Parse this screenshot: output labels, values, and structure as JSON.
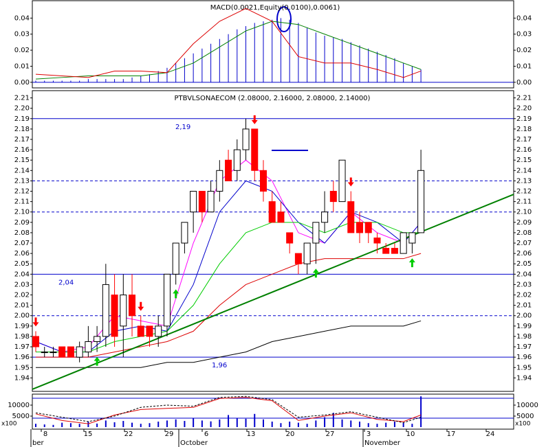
{
  "chart_data": [
    {
      "type": "macd",
      "title": "MACD(0.0021,Equity(0.0100),0.0061)",
      "ylim": [
        -0.0035,
        0.05
      ],
      "yticks": [
        {
          "value": 0,
          "label": "0.00"
        },
        0.01,
        0.02,
        0.03,
        0.04
      ],
      "values": [
        0.001,
        0.001,
        0.001,
        0.001,
        0.001,
        0.001,
        0.002,
        0.002,
        0.002,
        0.002,
        0.002,
        0.003,
        0.004,
        0.005,
        0.007,
        0.009,
        0.012,
        0.015,
        0.018,
        0.021,
        0.024,
        0.027,
        0.03,
        0.033,
        0.035,
        0.037,
        0.038,
        0.039,
        0.04,
        0.039,
        0.037,
        0.034,
        0.031,
        0.029,
        0.028,
        0.027,
        0.025,
        0.023,
        0.021,
        0.019,
        0.017,
        0.015,
        0.012,
        0.01,
        0.008
      ],
      "color": "#0000cc",
      "line_x": [
        0,
        3,
        6,
        9,
        12,
        15,
        18,
        21,
        24,
        27,
        30,
        33,
        36,
        39,
        42,
        44
      ],
      "series": [
        {
          "color": "#008000",
          "values": [
            0.002,
            0.003,
            0.004,
            0.004,
            0.004,
            0.006,
            0.012,
            0.022,
            0.032,
            0.038,
            0.036,
            0.03,
            0.024,
            0.018,
            0.012,
            0.008
          ]
        },
        {
          "color": "#dd0000",
          "values": [
            0.005,
            0.004,
            0.003,
            0.007,
            0.007,
            0.006,
            0.024,
            0.038,
            0.046,
            0.038,
            0.016,
            0.012,
            0.012,
            0.008,
            0.003,
            0.007
          ]
        }
      ]
    },
    {
      "type": "candlestick",
      "title": "PTBVLSONAECOM (2.08000, 2.16000, 2.08000, 2.14000)",
      "ylim": [
        1.927,
        2.217
      ],
      "yticks": [
        1.94,
        1.95,
        1.96,
        1.97,
        1.98,
        1.99,
        {
          "value": 2,
          "label": "2.00"
        },
        2.01,
        2.02,
        2.03,
        2.04,
        2.05,
        2.06,
        2.07,
        2.08,
        2.09,
        {
          "value": 2.1,
          "label": "2.10"
        },
        2.11,
        2.12,
        2.13,
        2.14,
        2.15,
        2.16,
        2.17,
        2.18,
        2.19,
        {
          "value": 2.2,
          "label": "2.20"
        },
        2.21
      ],
      "open": [
        1.98,
        1.965,
        1.965,
        1.97,
        1.97,
        1.96,
        1.965,
        1.975,
        1.98,
        2.02,
        1.99,
        2.02,
        1.99,
        1.99,
        1.98,
        1.99,
        2.04,
        2.07,
        2.1,
        2.12,
        2.1,
        2.12,
        2.15,
        2.14,
        2.16,
        2.18,
        2.14,
        2.11,
        2.1,
        2.08,
        2.06,
        2.05,
        2.07,
        2.09,
        2.12,
        2.11,
        2.11,
        2.09,
        2.09,
        2.075,
        2.065,
        2.065,
        2.06,
        2.07,
        2.08
      ],
      "high": [
        1.985,
        1.97,
        1.97,
        1.97,
        1.97,
        1.975,
        1.99,
        1.99,
        2.05,
        2.04,
        2.04,
        2.04,
        2.0,
        1.99,
        2.0,
        2.04,
        2.07,
        2.09,
        2.12,
        2.12,
        2.13,
        2.15,
        2.16,
        2.17,
        2.19,
        2.18,
        2.15,
        2.12,
        2.11,
        2.08,
        2.06,
        2.07,
        2.09,
        2.12,
        2.13,
        2.15,
        2.12,
        2.1,
        2.09,
        2.08,
        2.07,
        2.07,
        2.08,
        2.08,
        2.16
      ],
      "low": [
        1.965,
        1.96,
        1.96,
        1.96,
        1.96,
        1.955,
        1.96,
        1.965,
        1.97,
        1.97,
        1.96,
        1.98,
        1.98,
        1.97,
        1.97,
        1.98,
        2.03,
        2.06,
        2.08,
        2.09,
        2.1,
        2.11,
        2.13,
        2.13,
        2.15,
        2.13,
        2.11,
        2.09,
        2.09,
        2.06,
        2.04,
        2.04,
        2.05,
        2.08,
        2.1,
        2.11,
        2.08,
        2.07,
        2.07,
        2.06,
        2.06,
        2.06,
        2.06,
        2.06,
        2.08
      ],
      "close": [
        1.97,
        1.965,
        1.965,
        1.96,
        1.96,
        1.97,
        1.975,
        1.98,
        2.03,
        1.98,
        2.02,
        2.0,
        1.98,
        1.98,
        1.99,
        2.04,
        2.07,
        2.09,
        2.12,
        2.1,
        2.12,
        2.14,
        2.13,
        2.16,
        2.18,
        2.14,
        2.12,
        2.09,
        2.09,
        2.07,
        2.05,
        2.07,
        2.09,
        2.1,
        2.11,
        2.15,
        2.08,
        2.08,
        2.08,
        2.07,
        2.06,
        2.06,
        2.08,
        2.08,
        2.14
      ],
      "line_x": [
        0,
        3,
        6,
        9,
        12,
        15,
        18,
        21,
        24,
        27,
        30,
        33,
        36,
        39,
        42,
        44
      ],
      "series": [
        {
          "color": "#ff00ff",
          "values": [
            1.975,
            1.965,
            1.97,
            2.0,
            1.995,
            1.99,
            2.07,
            2.13,
            2.15,
            2.13,
            2.08,
            2.07,
            2.1,
            2.08,
            2.07,
            2.09
          ]
        },
        {
          "color": "#0000cc",
          "values": [
            1.975,
            1.965,
            1.965,
            1.985,
            1.99,
            1.985,
            2.03,
            2.1,
            2.13,
            2.12,
            2.09,
            2.07,
            2.1,
            2.09,
            2.07,
            2.09
          ]
        },
        {
          "color": "#00cc00",
          "values": [
            1.965,
            1.965,
            1.965,
            1.975,
            1.98,
            1.985,
            2.01,
            2.05,
            2.08,
            2.09,
            2.09,
            2.08,
            2.09,
            2.09,
            2.08,
            2.08
          ]
        },
        {
          "color": "#dd0000",
          "values": [
            1.96,
            1.96,
            1.96,
            1.965,
            1.97,
            1.975,
            1.985,
            2.01,
            2.03,
            2.04,
            2.05,
            2.055,
            2.055,
            2.055,
            2.055,
            2.06
          ]
        },
        {
          "color": "#000000",
          "values": [
            1.95,
            1.95,
            1.95,
            1.95,
            1.95,
            1.955,
            1.955,
            1.96,
            1.965,
            1.975,
            1.98,
            1.985,
            1.99,
            1.99,
            1.99,
            1.995
          ]
        }
      ],
      "levels": [
        {
          "value": 2.19,
          "label": "2,19",
          "dashed": false
        },
        {
          "value": 2.13,
          "dashed": true
        },
        {
          "value": 2.1,
          "dashed": true
        },
        {
          "value": 2.04,
          "label": "2,04",
          "dashed": false
        },
        {
          "value": 2,
          "dashed": true
        },
        {
          "value": 1.96,
          "label": "1,96",
          "dashed": false
        }
      ],
      "trendline": [
        1.929,
        2.117
      ],
      "sell_signals": [
        0,
        12,
        25,
        36
      ],
      "buy_signals": [
        7,
        16,
        32,
        43
      ]
    },
    {
      "type": "volume",
      "y_label": "x100",
      "ylim": [
        -940,
        14690
      ],
      "yticks": [
        5000,
        10000
      ],
      "values": [
        1500,
        1200,
        1000,
        2000,
        1800,
        1500,
        2500,
        1600,
        3000,
        2200,
        2800,
        2000,
        1500,
        1800,
        2500,
        3000,
        3500,
        2800,
        4000,
        3000,
        2600,
        3500,
        5500,
        4200,
        3800,
        6000,
        3500,
        2500,
        1800,
        2500,
        2000,
        1500,
        3000,
        4500,
        6500,
        3500,
        3000,
        2500,
        1800,
        1500,
        2000,
        2500,
        2000,
        1500,
        14000
      ],
      "color": "#0000cc",
      "line_x": [
        0,
        3,
        6,
        9,
        12,
        15,
        18,
        21,
        24,
        27,
        30,
        33,
        36,
        39,
        42,
        44
      ],
      "series": [
        {
          "color": "#dd0000",
          "values": [
            6000,
            3000,
            1500,
            5500,
            8000,
            8500,
            9000,
            13000,
            13500,
            12000,
            3000,
            5000,
            6500,
            3500,
            2500,
            5500
          ]
        },
        {
          "color": "#000000",
          "values": [
            6500,
            4500,
            2500,
            5000,
            9000,
            10000,
            9500,
            13500,
            14000,
            12500,
            4500,
            5500,
            7000,
            4500,
            2000,
            4500
          ]
        }
      ],
      "x_axis": {
        "days": [
          "8",
          "15",
          "22",
          "29",
          "6",
          "13",
          "20",
          "27",
          "3",
          "10",
          "17",
          "24"
        ],
        "months": [
          "ber",
          "October",
          "November"
        ]
      }
    }
  ]
}
